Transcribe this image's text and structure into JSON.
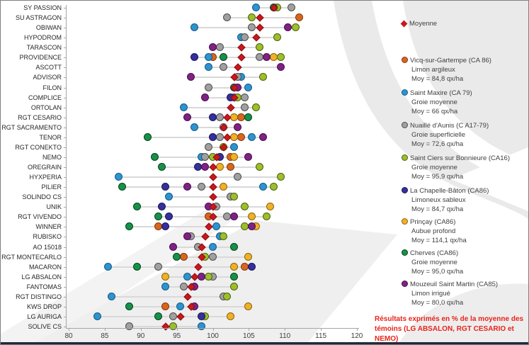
{
  "note": {
    "line1": "Résultats exprimés en % de la moyenne des",
    "line2": "témoins (LG ABSALON, RGT CESARIO et NEMO)"
  },
  "legend": {
    "moyenne": {
      "key": "moyenne",
      "label": "Moyenne",
      "color": "#c9191d",
      "border": "#8a0f12"
    },
    "items": [
      {
        "key": "vicq",
        "name": "Vicq-sur-Gartempe (CA 86)",
        "soil": "Limon argileux",
        "mean": "Moy = 84,8 qx/ha",
        "color": "#d9661e",
        "border": "#80380d"
      },
      {
        "key": "maxire",
        "name": "Saint Maxire (CA 79)",
        "soil": "Groie moyenne",
        "mean": "Moy = 66 qx/ha",
        "color": "#2e93d0",
        "border": "#155a84"
      },
      {
        "key": "nuaille",
        "name": "Nuaillé d'Aunis (C A17-79)",
        "soil": "Groie superficielle",
        "mean": "Moy = 72,6 qx/ha",
        "color": "#a0a0a0",
        "border": "#4d4d4d"
      },
      {
        "key": "stciers",
        "name": "Saint Ciers sur Bonnieure (CA16)",
        "soil": "Groie moyenne",
        "mean": "Moy = 95,9 qx/ha",
        "color": "#9cbf2a",
        "border": "#4e5f11"
      },
      {
        "key": "chapelle",
        "name": "La Chapelle-Bâton (CA86)",
        "soil": "Limoneux sableux",
        "mean": "Moy = 84,7 qx/ha",
        "color": "#36309a",
        "border": "#191460"
      },
      {
        "key": "princay",
        "name": "Prinçay (CA86)",
        "soil": "Aubue profond",
        "mean": "Moy = 114,1 qx/ha",
        "color": "#f0b027",
        "border": "#8c6508"
      },
      {
        "key": "cherves",
        "name": "Cherves (CA86)",
        "soil": "Groie moyenne",
        "mean": "Moy = 95,0 qx/ha",
        "color": "#169248",
        "border": "#063f1e"
      },
      {
        "key": "mouzeuil",
        "name": "Mouzeuil Saint Martin (CA85)",
        "soil": "Limon irrigué",
        "mean": "Moy = 80,0 qx/ha",
        "color": "#802285",
        "border": "#45104a"
      }
    ]
  },
  "chart_data": {
    "type": "scatter",
    "title": "",
    "xlabel": "",
    "ylabel": "",
    "xlim": [
      80,
      120
    ],
    "x_ticks": [
      80,
      85,
      90,
      95,
      100,
      105,
      110,
      115,
      120
    ],
    "grid": false,
    "legend_position": "right",
    "series_order": [
      "vicq",
      "maxire",
      "nuaille",
      "stciers",
      "chapelle",
      "princay",
      "cherves",
      "mouzeuil"
    ],
    "rows": [
      {
        "variety": "SY PASSION",
        "values": {
          "maxire": 106,
          "cherves": 108.5,
          "stciers": 109,
          "nuaille": 111,
          "moyenne": 108.5
        }
      },
      {
        "variety": "SU ASTRAGON",
        "values": {
          "nuaille": 102,
          "stciers": 105.5,
          "vicq": 112,
          "moyenne": 106.5
        }
      },
      {
        "variety": "OBIWAN",
        "values": {
          "maxire": 97.5,
          "nuaille": 105.5,
          "mouzeuil": 110.5,
          "stciers": 111.5,
          "moyenne": 106.5
        }
      },
      {
        "variety": "HYPODROM",
        "values": {
          "maxire": 104,
          "nuaille": 104.5,
          "stciers": 109,
          "moyenne": 106
        }
      },
      {
        "variety": "TARASCON",
        "values": {
          "mouzeuil": 100,
          "nuaille": 101,
          "stciers": 106.5,
          "moyenne": 104
        }
      },
      {
        "variety": "PROVIDENCE",
        "values": {
          "chapelle": 97.5,
          "maxire": 99.5,
          "vicq": 100,
          "cherves": 101.5,
          "nuaille": 106.5,
          "mouzeuil": 107.5,
          "princay": 108.5,
          "stciers": 109.5,
          "moyenne": 104
        }
      },
      {
        "variety": "ASCOTT",
        "values": {
          "maxire": 99.5,
          "nuaille": 101.5,
          "mouzeuil": 109.5,
          "moyenne": 103.5
        }
      },
      {
        "variety": "ADVISOR",
        "values": {
          "mouzeuil": 97,
          "nuaille": 103.5,
          "maxire": 104,
          "stciers": 107,
          "moyenne": 103
        }
      },
      {
        "variety": "FILON",
        "values": {
          "nuaille": 99.5,
          "cherves": 103,
          "mouzeuil": 103.5,
          "maxire": 105,
          "moyenne": 103
        }
      },
      {
        "variety": "COMPLICE",
        "values": {
          "mouzeuil": 99,
          "chapelle": 102.5,
          "maxire": 103,
          "stciers": 103.5,
          "nuaille": 104.5,
          "moyenne": 103
        }
      },
      {
        "variety": "ORTOLAN",
        "values": {
          "maxire": 96,
          "nuaille": 104.5,
          "stciers": 106,
          "moyenne": 102.5
        }
      },
      {
        "variety": "RGT CESARIO",
        "values": {
          "mouzeuil": 96.5,
          "chapelle": 100,
          "nuaille": 101,
          "princay": 103,
          "vicq": 104,
          "cherves": 105,
          "moyenne": 102
        }
      },
      {
        "variety": "RGT SACRAMENTO",
        "values": {
          "maxire": 97.5,
          "nuaille": 101.5,
          "mouzeuil": 103.5,
          "moyenne": 101.5
        }
      },
      {
        "variety": "TENOR",
        "values": {
          "cherves": 91,
          "chapelle": 100,
          "nuaille": 101,
          "princay": 103,
          "vicq": 104,
          "maxire": 105.5,
          "mouzeuil": 107,
          "moyenne": 102
        }
      },
      {
        "variety": "RGT CONEKTO",
        "values": {
          "nuaille": 99.5,
          "stciers": 101.5,
          "maxire": 103,
          "moyenne": 101.5
        }
      },
      {
        "variety": "NEMO",
        "values": {
          "cherves": 92,
          "maxire": 98.5,
          "nuaille": 99,
          "stciers": 100,
          "chapelle": 101,
          "vicq": 102.5,
          "princay": 103,
          "mouzeuil": 105,
          "moyenne": 100.5
        }
      },
      {
        "variety": "OREGRAIN",
        "values": {
          "cherves": 93,
          "chapelle": 98,
          "mouzeuil": 99,
          "princay": 101,
          "vicq": 102.5,
          "stciers": 106.5,
          "moyenne": 100
        }
      },
      {
        "variety": "HYXPERIA",
        "values": {
          "maxire": 87,
          "nuaille": 103.5,
          "stciers": 109.5,
          "moyenne": 100
        }
      },
      {
        "variety": "PILIER",
        "values": {
          "cherves": 87.5,
          "chapelle": 93.5,
          "mouzeuil": 96.5,
          "nuaille": 98.5,
          "princay": 101.5,
          "maxire": 107,
          "stciers": 108.5,
          "moyenne": 100
        }
      },
      {
        "variety": "SOLINDO CS",
        "values": {
          "maxire": 94,
          "nuaille": 102.5,
          "stciers": 103,
          "moyenne": 100
        }
      },
      {
        "variety": "UNIK",
        "values": {
          "cherves": 89.5,
          "chapelle": 93,
          "mouzeuil": 99.5,
          "nuaille": 100.5,
          "stciers": 104.5,
          "princay": 108,
          "moyenne": 100
        }
      },
      {
        "variety": "RGT VIVENDO",
        "values": {
          "cherves": 92.5,
          "chapelle": 94,
          "vicq": 99.5,
          "nuaille": 102,
          "mouzeuil": 103,
          "princay": 105.5,
          "stciers": 107.5,
          "moyenne": 100
        }
      },
      {
        "variety": "WINNER",
        "values": {
          "cherves": 88.5,
          "vicq": 92.5,
          "chapelle": 93.5,
          "maxire": 100.5,
          "stciers": 104.5,
          "mouzeuil": 105.5,
          "princay": 106,
          "moyenne": 99.5
        }
      },
      {
        "variety": "RUBISKO",
        "values": {
          "mouzeuil": 96.5,
          "nuaille": 97,
          "maxire": 101,
          "stciers": 101.5,
          "moyenne": 99
        }
      },
      {
        "variety": "AO 15018",
        "values": {
          "mouzeuil": 94.5,
          "nuaille": 98,
          "maxire": 100,
          "cherves": 103,
          "moyenne": 98.5
        }
      },
      {
        "variety": "RGT MONTECARLO",
        "values": {
          "cherves": 95,
          "vicq": 96,
          "stciers": 99,
          "nuaille": 100,
          "princay": 105,
          "moyenne": 98.5
        }
      },
      {
        "variety": "MACARON",
        "values": {
          "maxire": 85.5,
          "cherves": 89.5,
          "nuaille": 92.5,
          "princay": 103,
          "vicq": 104.5,
          "chapelle": 105.5,
          "moyenne": 98
        }
      },
      {
        "variety": "LG ABSALON",
        "values": {
          "princay": 93.5,
          "maxire": 96.5,
          "mouzeuil": 98.5,
          "stciers": 99.5,
          "nuaille": 100,
          "cherves": 103,
          "moyenne": 97.5
        }
      },
      {
        "variety": "FANTOMAS",
        "values": {
          "maxire": 93.5,
          "nuaille": 96,
          "mouzeuil": 97.5,
          "stciers": 103,
          "moyenne": 97
        }
      },
      {
        "variety": "RGT DISTINGO",
        "values": {
          "maxire": 86,
          "nuaille": 101.5,
          "stciers": 102,
          "moyenne": 96.5
        }
      },
      {
        "variety": "KWS DROP",
        "values": {
          "cherves": 88.5,
          "vicq": 93.5,
          "maxire": 95.5,
          "mouzeuil": 97.5,
          "princay": 105,
          "moyenne": 97
        }
      },
      {
        "variety": "LG AURIGA",
        "values": {
          "maxire": 84,
          "cherves": 92.5,
          "nuaille": 94.5,
          "chapelle": 98.5,
          "stciers": 99,
          "princay": 102.5,
          "moyenne": 95.5
        }
      },
      {
        "variety": "SOLIVE CS",
        "values": {
          "nuaille": 88.5,
          "stciers": 94.5,
          "maxire": 98.5,
          "moyenne": 93.5
        }
      }
    ]
  }
}
